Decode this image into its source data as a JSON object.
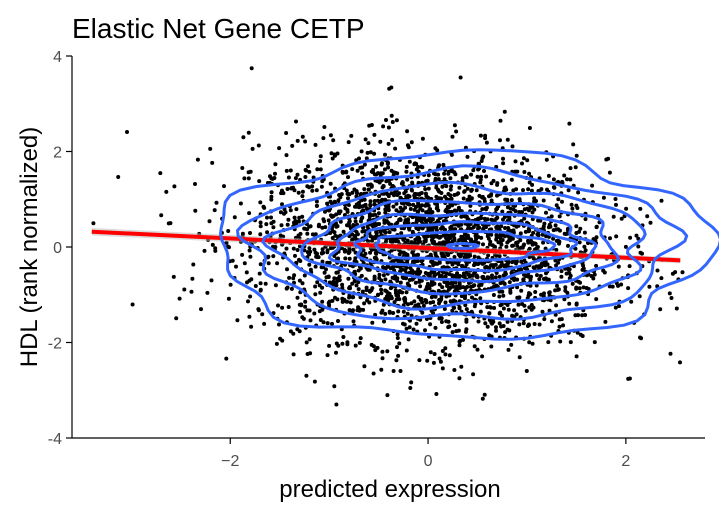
{
  "chart_data": {
    "type": "scatter",
    "title": "Elastic Net Gene CETP",
    "xlabel": "predicted expression",
    "ylabel": "HDL (rank normalized)",
    "xlim": [
      -3.6,
      2.8
    ],
    "ylim": [
      -4,
      4
    ],
    "xticks": [
      -2,
      0,
      2
    ],
    "yticks": [
      -4,
      -2,
      0,
      2,
      4
    ],
    "grid": false,
    "legend": "none",
    "points": {
      "n": 3000,
      "x_center": 0.0,
      "x_sd": 0.9,
      "y_center": 0.0,
      "y_sd": 1.0,
      "color": "#000000"
    },
    "trend_line": {
      "x": [
        -3.4,
        2.55
      ],
      "y": [
        0.32,
        -0.28
      ],
      "color": "#ff0000"
    },
    "density_contours": {
      "center": [
        0.35,
        0.02
      ],
      "color": "#3366ff",
      "levels": [
        {
          "rx": 0.15,
          "ry": 0.05
        },
        {
          "rx": 0.9,
          "ry": 0.3
        },
        {
          "rx": 1.1,
          "ry": 0.5
        },
        {
          "rx": 1.3,
          "ry": 0.7
        },
        {
          "rx": 1.55,
          "ry": 0.95
        },
        {
          "rx": 1.85,
          "ry": 1.25
        },
        {
          "rx": 2.15,
          "ry": 1.55
        },
        {
          "rx": 2.5,
          "ry": 1.95
        }
      ]
    }
  }
}
